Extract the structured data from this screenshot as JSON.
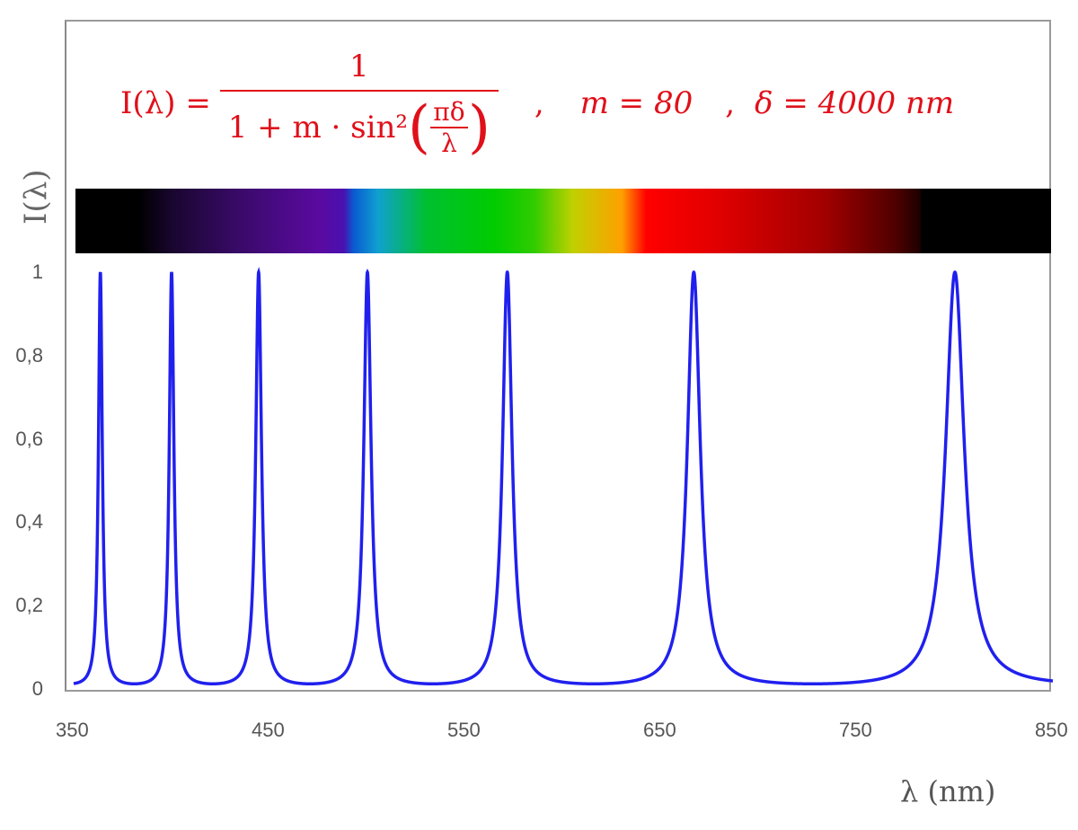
{
  "formula": {
    "lhs": "I(λ) =",
    "numerator": "1",
    "denominator_prefix": "1 + m · sin²",
    "inner_numerator": "πδ",
    "inner_denominator": "λ",
    "param_m": "m = 80",
    "param_delta": "δ = 4000 nm",
    "separator": ","
  },
  "colors": {
    "curve": "#2020ee",
    "formula": "#e0101a",
    "axis_text": "#555555"
  },
  "chart_data": {
    "type": "line",
    "function": "I(λ) = 1 / (1 + m·sin²(πδ/λ))",
    "params": {
      "m": 80,
      "delta_nm": 4000
    },
    "xlabel": "λ (nm)",
    "ylabel": "I(λ)",
    "xlim": [
      350,
      850
    ],
    "ylim": [
      0,
      1
    ],
    "x_ticks": [
      "350",
      "450",
      "550",
      "650",
      "750",
      "850"
    ],
    "y_ticks": [
      "0",
      "0,2",
      "0,4",
      "0,6",
      "0,8",
      "1"
    ],
    "peaks_nm": [
      363.6,
      400,
      444.4,
      500,
      571.4,
      666.7,
      800
    ],
    "grid": false,
    "spectrum_bar": "visible spectrum color band above plot"
  }
}
